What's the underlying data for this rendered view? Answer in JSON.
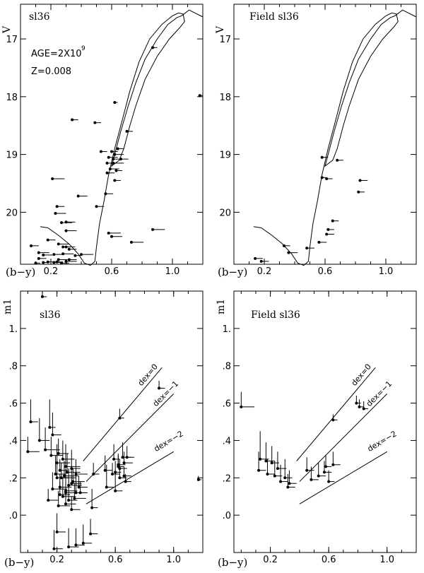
{
  "chart_data": [
    {
      "type": "scatter",
      "panel_label": "sl36",
      "annotations": [
        "AGE=2X10",
        "9",
        "Z=0.008"
      ],
      "xlabel": "(b−y)",
      "ylabel": "V",
      "xlim": [
        0.0,
        1.2
      ],
      "ylim": [
        20.9,
        16.4
      ],
      "y_inverted": true,
      "xticks": [
        0.2,
        0.6,
        1.0
      ],
      "xtick_labels": [
        "0.2",
        "0.6",
        "1.0"
      ],
      "yticks": [
        17,
        18,
        19,
        20
      ],
      "ytick_labels": [
        "17",
        "18",
        "19",
        "20"
      ],
      "series": [
        {
          "name": "",
          "x": [
            0.87,
            0.62,
            0.34,
            0.49,
            0.7,
            1.18,
            0.53,
            0.6,
            0.62,
            0.64,
            0.58,
            0.61,
            0.66,
            0.61,
            0.57,
            0.59,
            0.63,
            0.57,
            0.62,
            0.21,
            0.38,
            0.56,
            0.5,
            0.24,
            0.23,
            0.27,
            0.3,
            0.58,
            0.3,
            0.87,
            0.6,
            0.73,
            0.4,
            0.07,
            0.18,
            0.12,
            0.25,
            0.28,
            0.3,
            0.32,
            0.15,
            0.22,
            0.28,
            0.12,
            0.25,
            0.36,
            0.3,
            0.18,
            0.22,
            0.27,
            0.32,
            0.1,
            0.15,
            0.24
          ],
          "y": [
            17.15,
            18.1,
            18.4,
            18.45,
            18.6,
            17.98,
            18.95,
            18.95,
            19.0,
            18.9,
            19.05,
            19.08,
            19.08,
            19.15,
            19.15,
            19.25,
            19.28,
            19.32,
            19.45,
            19.42,
            19.72,
            19.68,
            19.9,
            19.9,
            20.02,
            20.18,
            20.17,
            20.36,
            20.32,
            20.3,
            20.42,
            20.52,
            20.73,
            20.58,
            20.48,
            20.7,
            20.55,
            20.6,
            20.6,
            20.64,
            20.74,
            20.73,
            20.72,
            20.8,
            20.82,
            20.75,
            20.85,
            20.86,
            20.87,
            20.88,
            20.82,
            20.88,
            20.87,
            20.86
          ],
          "xerr": [
            0.03,
            0.02,
            0.04,
            0.04,
            0.04,
            0.03,
            0.04,
            0.04,
            0.06,
            0.04,
            0.06,
            0.04,
            0.05,
            0.07,
            0.05,
            0.06,
            0.04,
            0.05,
            0.04,
            0.08,
            0.06,
            0.05,
            0.05,
            0.05,
            0.07,
            0.07,
            0.06,
            0.08,
            0.07,
            0.08,
            0.07,
            0.08,
            0.08,
            0.05,
            0.05,
            0.07,
            0.07,
            0.06,
            0.06,
            0.05,
            0.06,
            0.06,
            0.07,
            0.05,
            0.06,
            0.04,
            0.07,
            0.05,
            0.05,
            0.05,
            0.05,
            0.03,
            0.04,
            0.04
          ]
        }
      ]
    },
    {
      "type": "scatter",
      "panel_label": "Field sl36",
      "xlabel": "(b−y)",
      "ylabel": "V",
      "xlim": [
        0.0,
        1.2
      ],
      "ylim": [
        20.9,
        16.4
      ],
      "y_inverted": true,
      "xticks": [
        0.2,
        0.6,
        1.0
      ],
      "xtick_labels": [
        "0.2",
        "0.6",
        "1.0"
      ],
      "yticks": [
        17,
        18,
        19,
        20
      ],
      "ytick_labels": [
        "17",
        "18",
        "19",
        "20"
      ],
      "series": [
        {
          "name": "",
          "x": [
            0.58,
            0.68,
            0.58,
            0.61,
            0.83,
            0.82,
            0.65,
            0.62,
            0.61,
            0.56,
            0.48,
            0.33,
            0.36,
            0.14,
            0.18
          ],
          "y": [
            19.05,
            19.1,
            19.4,
            19.42,
            19.45,
            19.65,
            20.15,
            20.3,
            20.38,
            20.52,
            20.62,
            20.58,
            20.7,
            20.8,
            20.85
          ],
          "xerr": [
            0.04,
            0.04,
            0.03,
            0.04,
            0.05,
            0.04,
            0.04,
            0.04,
            0.05,
            0.05,
            0.05,
            0.04,
            0.06,
            0.05,
            0.05
          ]
        }
      ]
    },
    {
      "type": "scatter",
      "panel_label": "sl36",
      "xlabel": "(b−y)",
      "ylabel": "m1",
      "xlim": [
        -0.05,
        1.2
      ],
      "ylim": [
        -0.2,
        1.2
      ],
      "xticks": [
        0.2,
        0.6,
        1.0
      ],
      "xtick_labels": [
        "0.2",
        "0.6",
        "1.0"
      ],
      "yticks": [
        0.0,
        0.2,
        0.4,
        0.6,
        0.8,
        1.0
      ],
      "ytick_labels": [
        ".0",
        ".2",
        ".4",
        ".6",
        ".8",
        "1."
      ],
      "series": [
        {
          "name": "",
          "x": [
            0.1,
            0.9,
            0.63,
            1.17,
            0.15,
            0.17,
            0.02,
            0.0,
            0.08,
            0.12,
            0.16,
            0.21,
            0.24,
            0.2,
            0.26,
            0.3,
            0.27,
            0.33,
            0.25,
            0.2,
            0.19,
            0.23,
            0.31,
            0.35,
            0.3,
            0.28,
            0.22,
            0.26,
            0.33,
            0.24,
            0.17,
            0.22,
            0.28,
            0.32,
            0.36,
            0.26,
            0.21,
            0.14,
            0.3,
            0.26,
            0.22,
            0.59,
            0.62,
            0.65,
            0.63,
            0.58,
            0.6,
            0.66,
            0.68,
            0.62,
            0.63,
            0.66,
            0.67,
            0.54,
            0.6,
            0.53,
            0.45,
            0.44,
            0.2,
            0.28,
            0.33,
            0.38,
            0.43,
            0.18
          ],
          "y": [
            1.17,
            0.68,
            0.52,
            0.19,
            0.47,
            0.43,
            0.5,
            0.34,
            0.4,
            0.35,
            0.32,
            0.33,
            0.3,
            0.28,
            0.26,
            0.25,
            0.23,
            0.22,
            0.21,
            0.2,
            0.22,
            0.2,
            0.18,
            0.15,
            0.17,
            0.16,
            0.15,
            0.12,
            0.12,
            0.1,
            0.14,
            0.11,
            0.08,
            0.09,
            0.12,
            0.06,
            0.05,
            0.08,
            0.03,
            0.13,
            0.24,
            0.3,
            0.27,
            0.31,
            0.25,
            0.22,
            0.23,
            0.28,
            0.31,
            0.26,
            0.2,
            0.21,
            0.18,
            0.15,
            0.13,
            0.24,
            0.22,
            0.04,
            -0.09,
            -0.17,
            -0.16,
            -0.15,
            -0.1,
            -0.18
          ],
          "xerr": [
            0.03,
            0.04,
            0.03,
            0.02,
            0.04,
            0.06,
            0.05,
            0.08,
            0.07,
            0.1,
            0.08,
            0.07,
            0.08,
            0.09,
            0.1,
            0.06,
            0.09,
            0.08,
            0.1,
            0.08,
            0.07,
            0.1,
            0.08,
            0.06,
            0.07,
            0.09,
            0.08,
            0.06,
            0.07,
            0.09,
            0.1,
            0.07,
            0.06,
            0.08,
            0.05,
            0.07,
            0.08,
            0.07,
            0.06,
            0.08,
            0.05,
            0.04,
            0.05,
            0.06,
            0.05,
            0.05,
            0.04,
            0.06,
            0.05,
            0.04,
            0.05,
            0.05,
            0.04,
            0.05,
            0.05,
            0.05,
            0.04,
            0.04,
            0.06,
            0.07,
            0.06,
            0.06,
            0.05,
            0.06
          ],
          "yerr": [
            0.06,
            0.04,
            0.05,
            0.02,
            0.15,
            0.12,
            0.12,
            0.08,
            0.12,
            0.12,
            0.1,
            0.08,
            0.1,
            0.1,
            0.12,
            0.1,
            0.1,
            0.08,
            0.08,
            0.1,
            0.1,
            0.08,
            0.07,
            0.06,
            0.08,
            0.09,
            0.07,
            0.06,
            0.1,
            0.1,
            0.09,
            0.07,
            0.08,
            0.08,
            0.06,
            0.07,
            0.08,
            0.06,
            0.07,
            0.12,
            0.06,
            0.08,
            0.06,
            0.08,
            0.05,
            0.06,
            0.06,
            0.06,
            0.06,
            0.06,
            0.05,
            0.05,
            0.04,
            0.12,
            0.1,
            0.08,
            0.06,
            0.1,
            0.1,
            0.1,
            0.09,
            0.1,
            0.08,
            0.1
          ]
        }
      ]
    },
    {
      "type": "scatter",
      "panel_label": "Field sl36",
      "xlabel": "(b−y)",
      "ylabel": "m1",
      "xlim": [
        -0.05,
        1.2
      ],
      "ylim": [
        -0.2,
        1.2
      ],
      "xticks": [
        0.2,
        0.6,
        1.0
      ],
      "xtick_labels": [
        "0.2",
        "0.6",
        "1.0"
      ],
      "yticks": [
        0.0,
        0.2,
        0.4,
        0.6,
        0.8,
        1.0
      ],
      "ytick_labels": [
        ".0",
        ".2",
        ".4",
        ".6",
        ".8",
        "1."
      ],
      "series": [
        {
          "name": "",
          "x": [
            0.0,
            0.63,
            0.79,
            0.81,
            0.84,
            0.13,
            0.17,
            0.21,
            0.12,
            0.25,
            0.3,
            0.18,
            0.23,
            0.33,
            0.27,
            0.32,
            0.45,
            0.53,
            0.58,
            0.63,
            0.57,
            0.6,
            0.48
          ],
          "y": [
            0.58,
            0.51,
            0.6,
            0.58,
            0.57,
            0.3,
            0.29,
            0.28,
            0.24,
            0.25,
            0.2,
            0.22,
            0.21,
            0.17,
            0.18,
            0.15,
            0.24,
            0.21,
            0.26,
            0.27,
            0.23,
            0.18,
            0.19
          ],
          "xerr": [
            0.09,
            0.03,
            0.03,
            0.03,
            0.03,
            0.06,
            0.06,
            0.05,
            0.05,
            0.06,
            0.05,
            0.05,
            0.05,
            0.05,
            0.05,
            0.05,
            0.05,
            0.05,
            0.04,
            0.05,
            0.05,
            0.04,
            0.05
          ],
          "yerr": [
            0.08,
            0.03,
            0.04,
            0.04,
            0.04,
            0.15,
            0.1,
            0.09,
            0.1,
            0.09,
            0.1,
            0.08,
            0.08,
            0.07,
            0.09,
            0.07,
            0.07,
            0.07,
            0.06,
            0.07,
            0.06,
            0.06,
            0.07
          ]
        }
      ]
    }
  ],
  "cmd_labels": {
    "line_dex0": "dex=0",
    "line_dex1": "dex=−1",
    "line_dex2": "dex=−2"
  }
}
